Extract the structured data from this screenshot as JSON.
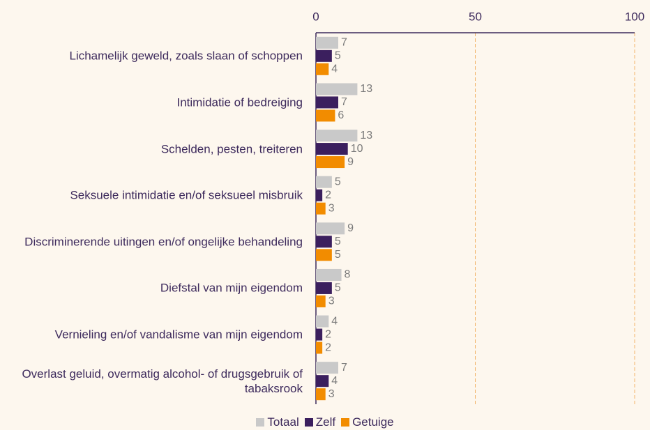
{
  "chart_data": {
    "type": "bar",
    "orientation": "horizontal",
    "categories": [
      "Lichamelijk geweld, zoals slaan of schoppen",
      "Intimidatie of bedreiging",
      "Schelden, pesten, treiteren",
      "Seksuele intimidatie en/of seksueel misbruik",
      "Discriminerende uitingen en/of ongelijke behandeling",
      "Diefstal van mijn eigendom",
      "Vernieling en/of vandalisme van mijn eigendom",
      "Overlast geluid, overmatig alcohol- of drugsgebruik of tabaksrook"
    ],
    "series": [
      {
        "name": "Totaal",
        "color": "#c9c9c9",
        "values": [
          7,
          13,
          13,
          5,
          9,
          8,
          4,
          7
        ]
      },
      {
        "name": "Zelf",
        "color": "#3b1f5e",
        "values": [
          5,
          7,
          10,
          2,
          5,
          5,
          2,
          4
        ]
      },
      {
        "name": "Getuige",
        "color": "#f28c00",
        "values": [
          4,
          6,
          9,
          3,
          5,
          3,
          2,
          3
        ]
      }
    ],
    "xlim": [
      0,
      100
    ],
    "xticks": [
      0,
      50,
      100
    ],
    "grid": true,
    "legend": "bottom"
  }
}
